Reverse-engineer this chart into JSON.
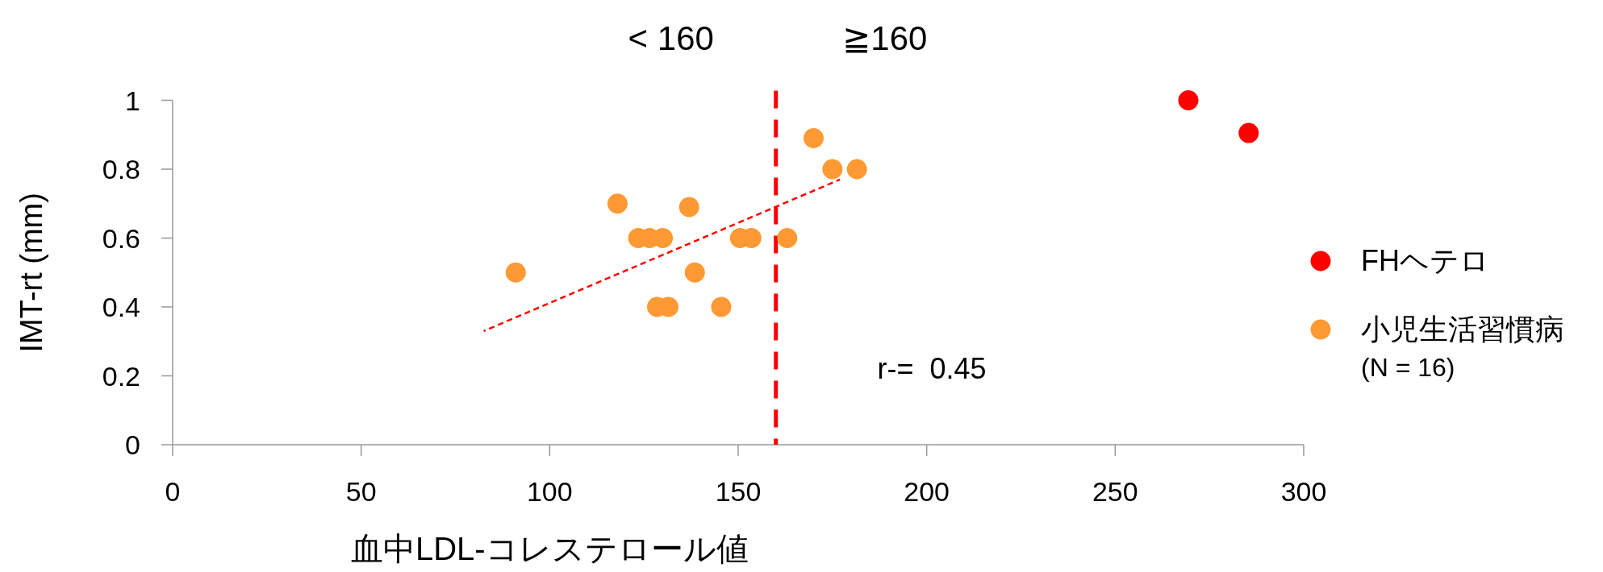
{
  "chart_data": {
    "type": "scatter",
    "xlabel": "血中LDL-コレステロール値",
    "ylabel": "IMT-rt (mm)",
    "xlim": [
      0,
      300
    ],
    "xticks": [
      0,
      50,
      100,
      150,
      200,
      250,
      300
    ],
    "ylim": [
      0,
      1
    ],
    "yticks": [
      0,
      0.2,
      0.4,
      0.6,
      0.8,
      1
    ],
    "marker": "circle",
    "legend": "right",
    "grid": false,
    "series": [
      {
        "name": "FHヘテロ",
        "color": "#ff0000",
        "x": [
          269.4,
          285.4
        ],
        "values": [
          1.0,
          0.905
        ]
      },
      {
        "name": "小児生活習慣病 (N = 16)",
        "color": "#ff9933",
        "x": [
          91,
          118,
          123.5,
          126.5,
          130,
          137,
          138.5,
          128.5,
          131.5,
          145.5,
          150.5,
          153.5,
          163,
          170,
          175,
          181.5
        ],
        "values": [
          0.5,
          0.7,
          0.6,
          0.6,
          0.6,
          0.69,
          0.5,
          0.4,
          0.4,
          0.4,
          0.6,
          0.6,
          0.6,
          0.89,
          0.8,
          0.8
        ]
      },
      {
        "type": "line",
        "color": "#ff0000",
        "line_style": "dashed",
        "marker": "none",
        "x": [
          82.5,
          177
        ],
        "values": [
          0.33,
          0.77
        ]
      }
    ],
    "ref_lines": [
      {
        "axis": "x",
        "value": 160,
        "color": "#ff0000",
        "line_style": "dashed"
      }
    ],
    "annotations": [
      "< 160",
      "≧160",
      "r-=  0.45"
    ]
  }
}
